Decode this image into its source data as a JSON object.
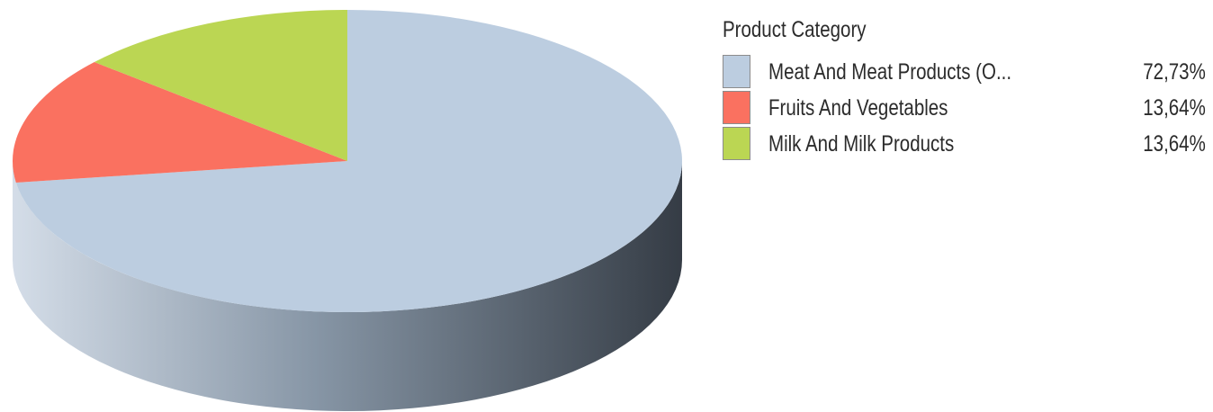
{
  "chart_data": {
    "type": "pie",
    "style": "3d",
    "legend_title": "Product Category",
    "legend_position": "right",
    "slices": [
      {
        "label": "Meat And Meat Products (O...",
        "value": 72.73,
        "value_label": "72,73%",
        "color": "#bccde0"
      },
      {
        "label": "Fruits And Vegetables",
        "value": 13.64,
        "value_label": "13,64%",
        "color": "#fa7160"
      },
      {
        "label": "Milk And Milk Products",
        "value": 13.64,
        "value_label": "13,64%",
        "color": "#bbd653"
      }
    ]
  }
}
